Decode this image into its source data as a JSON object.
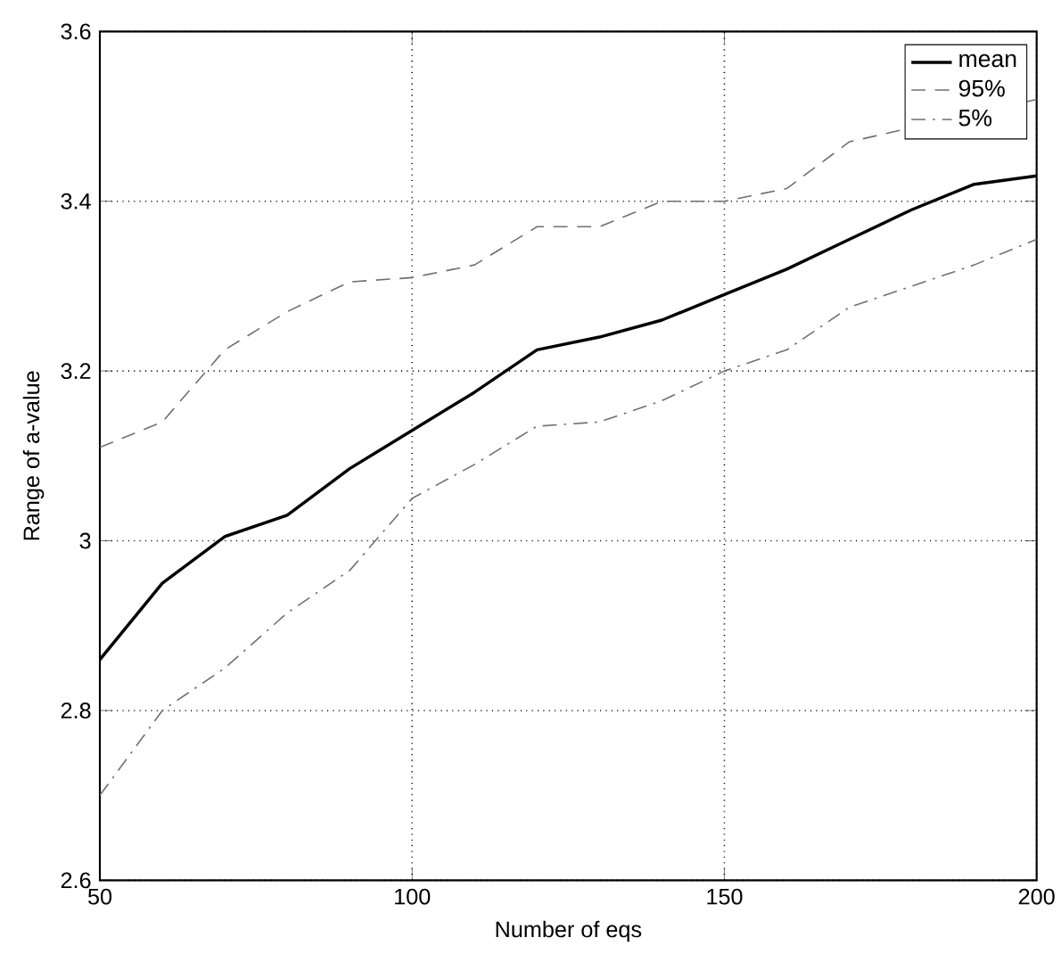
{
  "chart_data": {
    "type": "line",
    "xlabel": "Number of eqs",
    "ylabel": "Range of a-value",
    "x": [
      50,
      60,
      70,
      80,
      90,
      100,
      110,
      120,
      130,
      140,
      150,
      160,
      170,
      180,
      190,
      200
    ],
    "series": [
      {
        "name": "mean",
        "color": "#000000",
        "line_style": "solid",
        "values": [
          2.86,
          2.95,
          3.005,
          3.03,
          3.085,
          3.13,
          3.175,
          3.225,
          3.24,
          3.26,
          3.29,
          3.32,
          3.355,
          3.39,
          3.42,
          3.43
        ]
      },
      {
        "name": "95%",
        "color": "#707070",
        "line_style": "dashed",
        "values": [
          3.11,
          3.14,
          3.225,
          3.27,
          3.305,
          3.31,
          3.325,
          3.37,
          3.37,
          3.4,
          3.4,
          3.415,
          3.47,
          null,
          null,
          3.52
        ]
      },
      {
        "name": "5%",
        "color": "#707070",
        "line_style": "dashdot",
        "values": [
          2.7,
          2.8,
          2.85,
          2.915,
          2.965,
          3.05,
          3.09,
          3.135,
          3.14,
          3.165,
          3.2,
          3.225,
          3.275,
          3.3,
          3.325,
          3.355
        ]
      }
    ],
    "xlim": [
      50,
      200
    ],
    "ylim": [
      2.6,
      3.6
    ],
    "xticks": [
      50,
      100,
      150,
      200
    ],
    "yticks": [
      2.6,
      2.8,
      3,
      3.2,
      3.4,
      3.6
    ],
    "grid": true,
    "legend": "top right",
    "marker": "none"
  }
}
